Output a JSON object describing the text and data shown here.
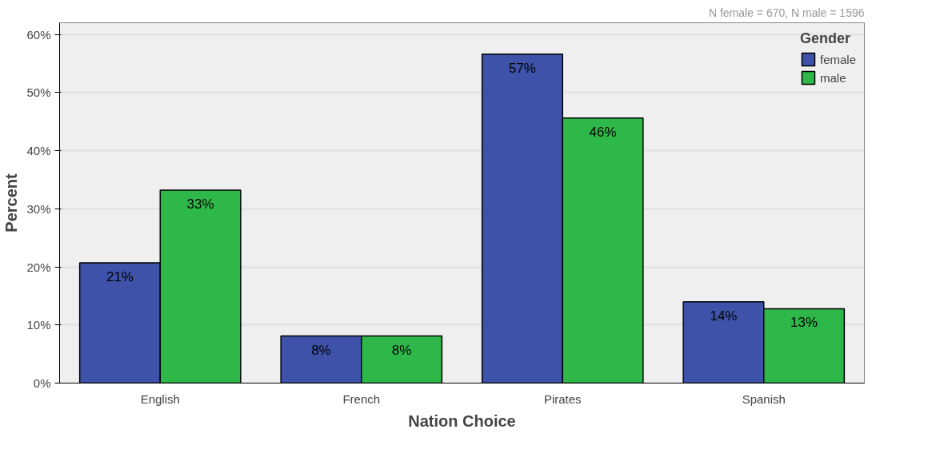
{
  "chart_data": {
    "type": "bar",
    "xlabel": "Nation Choice",
    "ylabel": "Percent",
    "legend_title": "Gender",
    "categories": [
      "English",
      "French",
      "Pirates",
      "Spanish"
    ],
    "series": [
      {
        "name": "female",
        "color": "#3d52a8",
        "values": [
          20.7,
          8.1,
          56.6,
          14.0
        ],
        "value_labels": [
          "21%",
          "8%",
          "57%",
          "14%"
        ]
      },
      {
        "name": "male",
        "color": "#2eb84a",
        "values": [
          33.2,
          8.1,
          45.6,
          12.8
        ],
        "value_labels": [
          "33%",
          "8%",
          "46%",
          "13%"
        ]
      }
    ],
    "ylim": [
      0,
      62
    ],
    "yticks": [
      {
        "value": 0,
        "label": "0%"
      },
      {
        "value": 10,
        "label": "10%"
      },
      {
        "value": 20,
        "label": "20%"
      },
      {
        "value": 30,
        "label": "30%"
      },
      {
        "value": 40,
        "label": "40%"
      },
      {
        "value": 50,
        "label": "50%"
      },
      {
        "value": 60,
        "label": "60%"
      }
    ],
    "grid": "y",
    "legend": "top right",
    "annotations": [
      "N female = 670, N male = 1596"
    ]
  }
}
